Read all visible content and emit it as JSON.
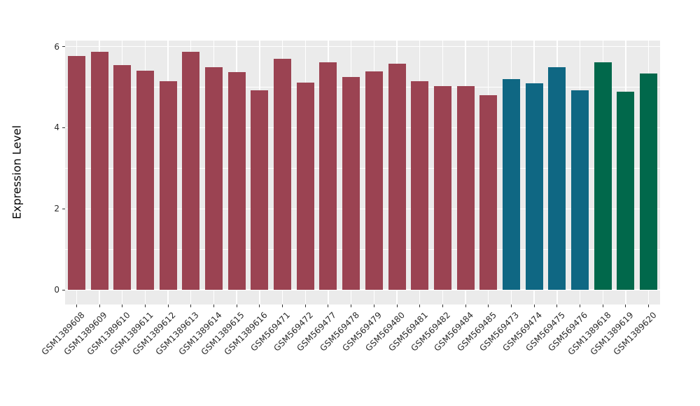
{
  "chart_data": {
    "type": "bar",
    "ylabel": "Expression Level",
    "xlabel": "",
    "ylim": [
      0,
      6
    ],
    "yticks": [
      0,
      2,
      4,
      6
    ],
    "yticks_minor": [
      1,
      3,
      5
    ],
    "grid": true,
    "legend_position": "none",
    "panel_bg": "#EBEBEB",
    "grid_color": "#FFFFFF",
    "palette": {
      "group1": "#9B4352",
      "group2": "#0F6783",
      "group3": "#01684B"
    },
    "categories": [
      "GSM1389608",
      "GSM1389609",
      "GSM1389610",
      "GSM1389611",
      "GSM1389612",
      "GSM1389613",
      "GSM1389614",
      "GSM1389615",
      "GSM1389616",
      "GSM569471",
      "GSM569472",
      "GSM569477",
      "GSM569478",
      "GSM569479",
      "GSM569480",
      "GSM569481",
      "GSM569482",
      "GSM569484",
      "GSM569485",
      "GSM569473",
      "GSM569474",
      "GSM569475",
      "GSM569476",
      "GSM1389618",
      "GSM1389619",
      "GSM1389620"
    ],
    "values": [
      5.76,
      5.88,
      5.55,
      5.41,
      5.15,
      5.88,
      5.5,
      5.37,
      4.93,
      5.7,
      5.11,
      5.61,
      5.25,
      5.38,
      5.57,
      5.15,
      5.03,
      5.03,
      4.8,
      5.19,
      5.09,
      5.49,
      4.93,
      5.62,
      4.88,
      5.34
    ],
    "bar_colors": [
      "#9B4352",
      "#9B4352",
      "#9B4352",
      "#9B4352",
      "#9B4352",
      "#9B4352",
      "#9B4352",
      "#9B4352",
      "#9B4352",
      "#9B4352",
      "#9B4352",
      "#9B4352",
      "#9B4352",
      "#9B4352",
      "#9B4352",
      "#9B4352",
      "#9B4352",
      "#9B4352",
      "#9B4352",
      "#0F6783",
      "#0F6783",
      "#0F6783",
      "#0F6783",
      "#01684B",
      "#01684B",
      "#01684B"
    ]
  }
}
